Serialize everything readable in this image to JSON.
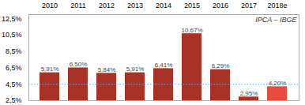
{
  "chart_data": {
    "type": "bar",
    "categories": [
      "2010",
      "2011",
      "2012",
      "2013",
      "2014",
      "2015",
      "2016",
      "2017",
      "2018e"
    ],
    "values": [
      5.91,
      6.5,
      5.84,
      5.91,
      6.41,
      10.67,
      6.29,
      2.95,
      4.2
    ],
    "value_labels": [
      "5,91%",
      "6,50%",
      "5,84%",
      "5,91%",
      "6,41%",
      "10,67%",
      "6,29%",
      "2,95%",
      "4,20%"
    ],
    "data_labels": true,
    "colors": [
      "#a93226",
      "#a93226",
      "#a93226",
      "#a93226",
      "#a93226",
      "#a93226",
      "#a93226",
      "#a93226",
      "#e74c3c"
    ],
    "ylim": [
      2.5,
      13.0
    ],
    "yticks": [
      {
        "value": 2.5,
        "label": "2,5%"
      },
      {
        "value": 4.5,
        "label": "4,5%"
      },
      {
        "value": 6.5,
        "label": "6,5%"
      },
      {
        "value": 8.5,
        "label": "8,5%"
      },
      {
        "value": 10.5,
        "label": "10,5%"
      },
      {
        "value": 12.5,
        "label": "12,5%"
      }
    ],
    "hline": {
      "y": 4.5,
      "color": "#5dade2",
      "line_style": "dotted"
    },
    "annotations": [
      {
        "text": "IPCA – IBGE"
      }
    ],
    "grid": false
  }
}
